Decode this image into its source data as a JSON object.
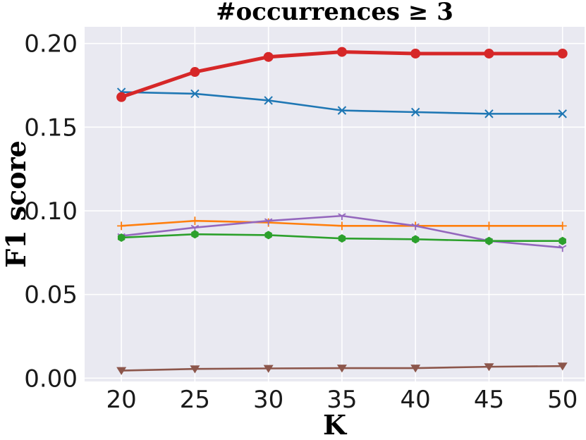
{
  "chart_data": {
    "type": "line",
    "title": "#occurrences ≥ 3",
    "xlabel": "K",
    "ylabel": "F1 score",
    "x": [
      20,
      25,
      30,
      35,
      40,
      45,
      50
    ],
    "xlim": [
      17.5,
      51.5
    ],
    "ylim": [
      -0.002,
      0.21
    ],
    "x_ticks": [
      "20",
      "25",
      "30",
      "35",
      "40",
      "45",
      "50"
    ],
    "y_ticks": [
      "0.00",
      "0.05",
      "0.10",
      "0.15",
      "0.20"
    ],
    "grid": true,
    "background_color": "#e9e9f1",
    "grid_color": "#ffffff",
    "series": [
      {
        "color": "#d62728",
        "marker": "circle",
        "emphasis": true,
        "values": [
          0.168,
          0.183,
          0.192,
          0.195,
          0.194,
          0.194,
          0.194
        ]
      },
      {
        "color": "#1f77b4",
        "marker": "x",
        "values": [
          0.171,
          0.17,
          0.166,
          0.16,
          0.159,
          0.158,
          0.158
        ]
      },
      {
        "color": "#ff7f0e",
        "marker": "plus",
        "values": [
          0.091,
          0.094,
          0.093,
          0.091,
          0.091,
          0.091,
          0.091
        ]
      },
      {
        "color": "#9467bd",
        "marker": "tri_down",
        "values": [
          0.085,
          0.09,
          0.094,
          0.097,
          0.091,
          0.082,
          0.078
        ]
      },
      {
        "color": "#2ca02c",
        "marker": "hexagon",
        "values": [
          0.084,
          0.086,
          0.0855,
          0.0835,
          0.083,
          0.082,
          0.082
        ]
      },
      {
        "color": "#8c564b",
        "marker": "triangle_down",
        "values": [
          0.0045,
          0.0055,
          0.0058,
          0.006,
          0.006,
          0.0068,
          0.0072
        ]
      }
    ]
  }
}
